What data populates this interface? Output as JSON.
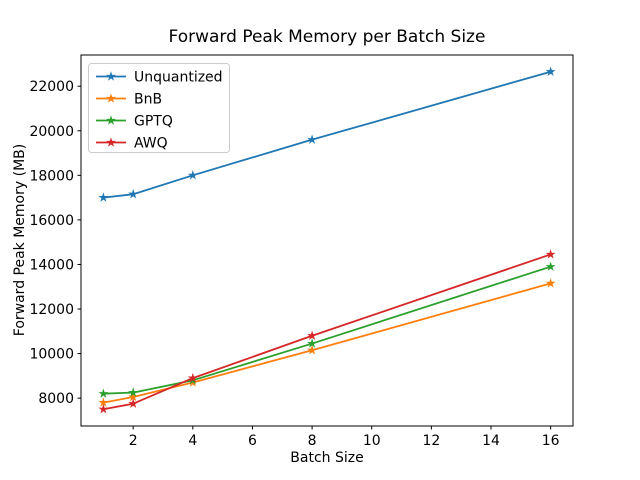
{
  "title": "Forward Peak Memory per Batch Size",
  "chart_data": {
    "type": "line",
    "title": "Forward Peak Memory per Batch Size",
    "xlabel": "Batch Size",
    "ylabel": "Forward Peak Memory (MB)",
    "x": [
      1,
      2,
      4,
      8,
      16
    ],
    "series": [
      {
        "name": "Unquantized",
        "color": "#1f77b4",
        "values": [
          17000,
          17150,
          18000,
          19600,
          22650
        ]
      },
      {
        "name": "BnB",
        "color": "#ff7f0e",
        "values": [
          7800,
          8050,
          8700,
          10150,
          13150
        ]
      },
      {
        "name": "GPTQ",
        "color": "#2ca02c",
        "values": [
          8200,
          8250,
          8800,
          10450,
          13900
        ]
      },
      {
        "name": "AWQ",
        "color": "#d62728",
        "values": [
          7500,
          7750,
          8900,
          10800,
          14450
        ]
      }
    ],
    "xticks": [
      2,
      4,
      6,
      8,
      10,
      12,
      14,
      16
    ],
    "yticks": [
      8000,
      10000,
      12000,
      14000,
      16000,
      18000,
      20000,
      22000
    ],
    "xlim": [
      0.25,
      16.75
    ],
    "ylim": [
      6750,
      23400
    ],
    "marker": "star",
    "grid": false,
    "legend_position": "upper left",
    "background_color": "#ffffff",
    "frame_color": "#000000",
    "legend_border_color": "#cccccc"
  }
}
